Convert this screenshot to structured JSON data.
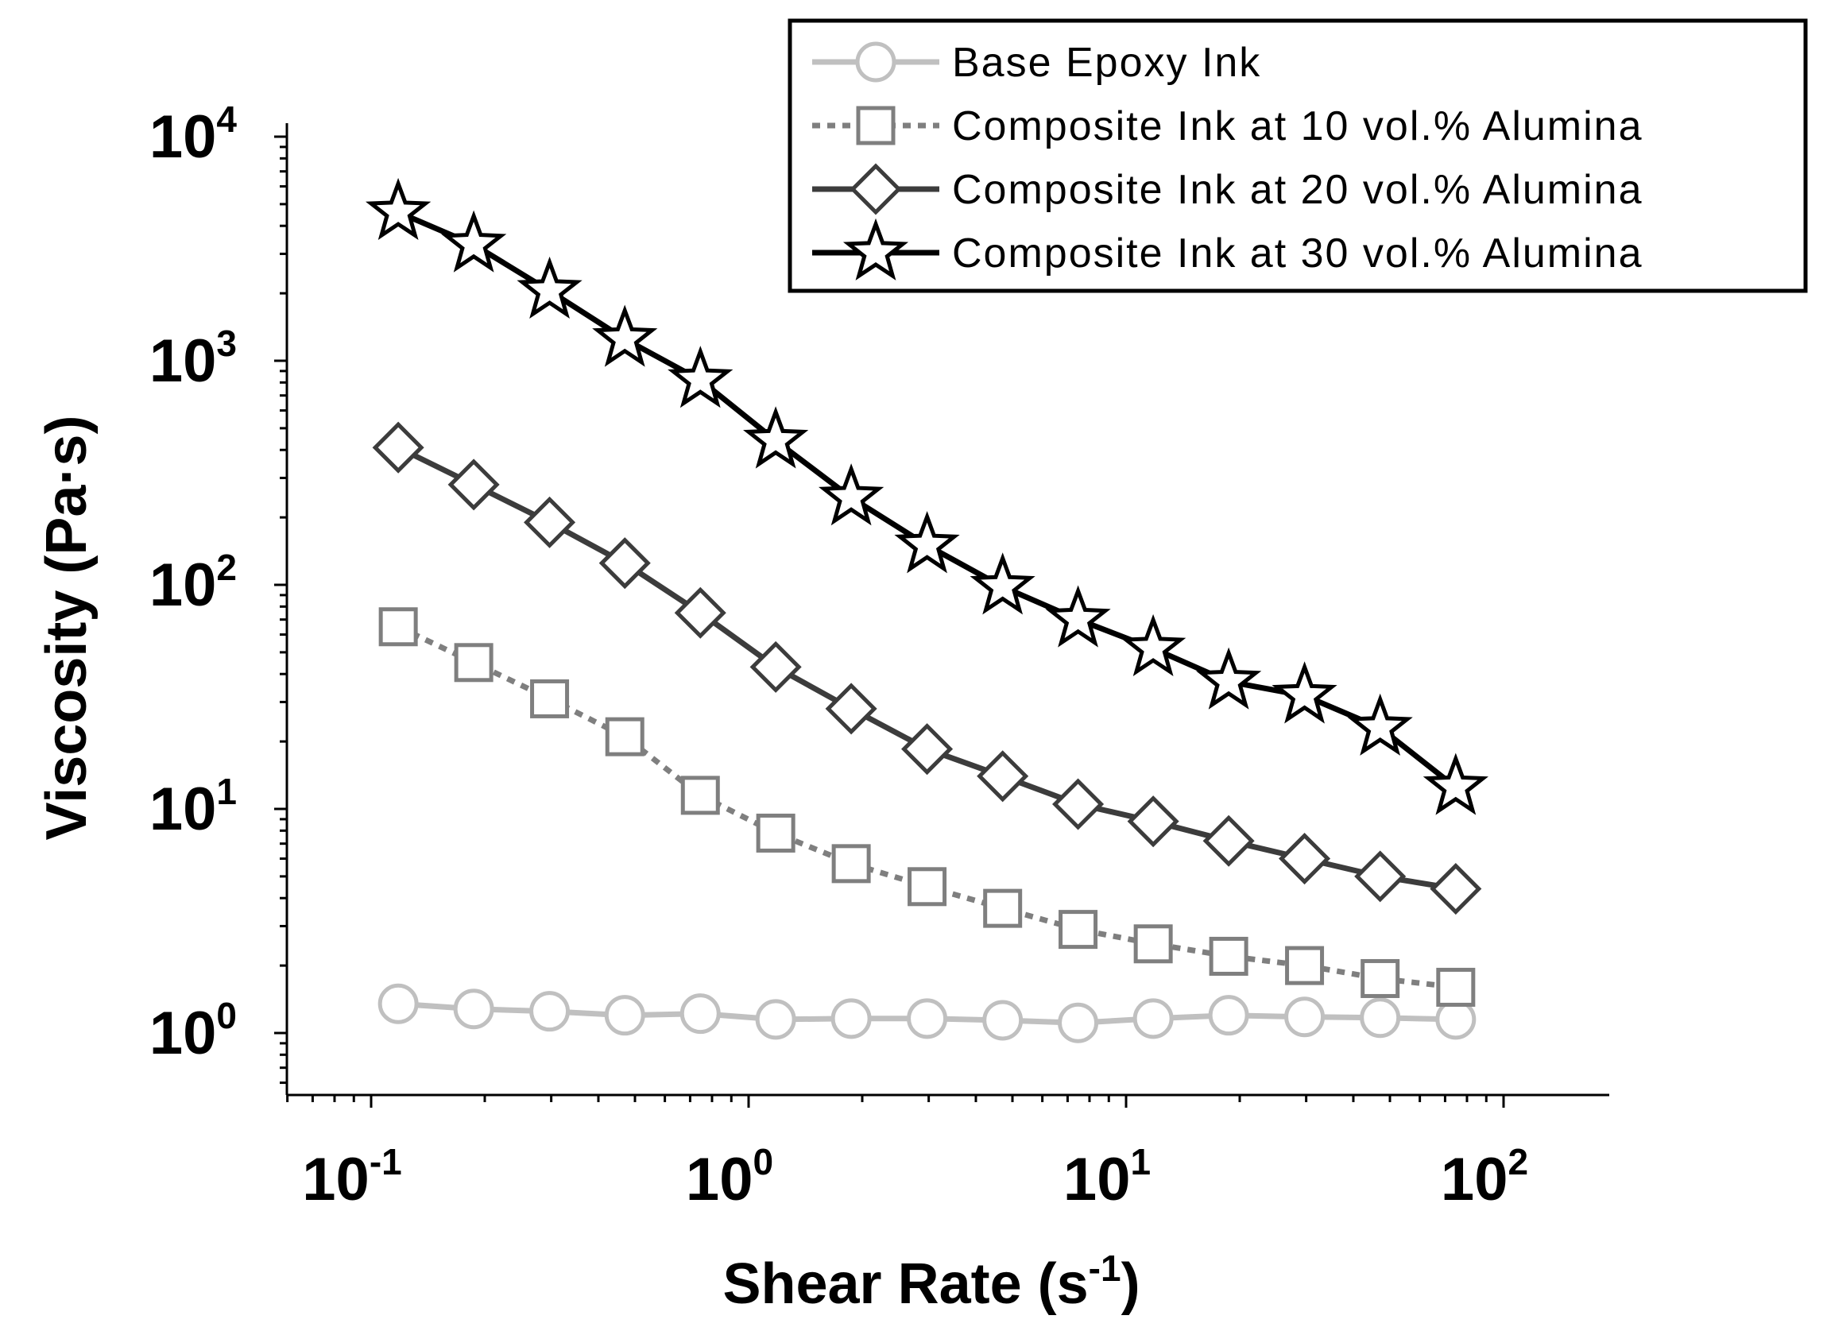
{
  "chart_data": {
    "type": "line",
    "title": "",
    "xlabel": "Shear Rate (s-1)",
    "xlabel_main": "Shear Rate (s",
    "xlabel_sup": "-1",
    "xlabel_end": ")",
    "ylabel": "Viscosity (Pa·s)",
    "xscale": "log",
    "yscale": "log",
    "xlim": [
      0.06,
      200
    ],
    "ylim": [
      0.55,
      12000
    ],
    "x_ticks": [
      {
        "value": 0.1,
        "base": "10",
        "exp": "-1"
      },
      {
        "value": 1,
        "base": "10",
        "exp": "0"
      },
      {
        "value": 10,
        "base": "10",
        "exp": "1"
      },
      {
        "value": 100,
        "base": "10",
        "exp": "2"
      }
    ],
    "y_ticks": [
      {
        "value": 1,
        "base": "10",
        "exp": "0"
      },
      {
        "value": 10,
        "base": "10",
        "exp": "1"
      },
      {
        "value": 100,
        "base": "10",
        "exp": "2"
      },
      {
        "value": 1000,
        "base": "10",
        "exp": "3"
      },
      {
        "value": 10000,
        "base": "10",
        "exp": "4"
      }
    ],
    "legend_position": "top-right",
    "x": [
      0.118,
      0.187,
      0.297,
      0.47,
      0.745,
      1.18,
      1.87,
      2.97,
      4.71,
      7.46,
      11.8,
      18.7,
      29.7,
      47.1,
      74.7
    ],
    "series": [
      {
        "name": "Base Epoxy Ink",
        "marker": "circle",
        "line": "solid",
        "color": "#c0c0c0",
        "values": [
          1.35,
          1.28,
          1.25,
          1.2,
          1.22,
          1.15,
          1.16,
          1.16,
          1.14,
          1.11,
          1.16,
          1.2,
          1.18,
          1.17,
          1.15
        ]
      },
      {
        "name": "Composite Ink at 10 vol.% Alumina",
        "marker": "square",
        "line": "dotted",
        "color": "#7f7f7f",
        "values": [
          65,
          45,
          31,
          21,
          11.5,
          7.8,
          5.7,
          4.5,
          3.6,
          2.9,
          2.5,
          2.2,
          2.0,
          1.75,
          1.6
        ]
      },
      {
        "name": "Composite Ink at 20 vol.% Alumina",
        "marker": "diamond",
        "line": "solid",
        "color": "#3c3c3c",
        "values": [
          410,
          280,
          190,
          125,
          75,
          43,
          28,
          18.5,
          14,
          10.5,
          8.8,
          7.2,
          6.0,
          5.0,
          4.4
        ]
      },
      {
        "name": "Composite Ink at 30 vol.% Alumina",
        "marker": "star",
        "line": "solid",
        "color": "#000000",
        "values": [
          4600,
          3300,
          2050,
          1250,
          820,
          440,
          245,
          150,
          98,
          70,
          52,
          37,
          32,
          23,
          12.5
        ]
      }
    ]
  }
}
